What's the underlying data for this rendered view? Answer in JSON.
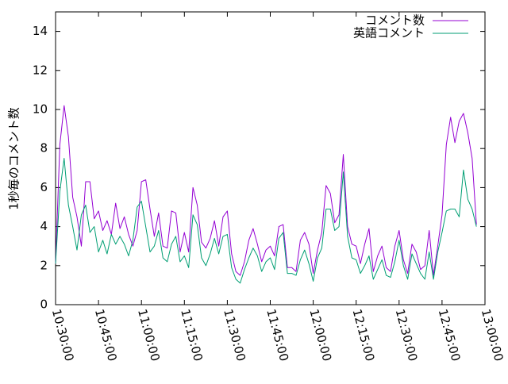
{
  "chart_data": {
    "type": "line",
    "title": "",
    "xlabel": "",
    "ylabel": "1秒毎のコメント数",
    "ylim": [
      0,
      15
    ],
    "y_ticks": [
      0,
      2,
      4,
      6,
      8,
      10,
      12,
      14
    ],
    "x_range": [
      "10:30:00",
      "13:00:00"
    ],
    "x_ticks": [
      "10:30:00",
      "10:45:00",
      "11:00:00",
      "11:15:00",
      "11:30:00",
      "11:45:00",
      "12:00:00",
      "12:15:00",
      "12:30:00",
      "12:45:00",
      "13:00:00"
    ],
    "x_tick_minutes": [
      0,
      15,
      30,
      45,
      60,
      75,
      90,
      105,
      120,
      135,
      150
    ],
    "grid": false,
    "legend_position": "top-right",
    "x": [
      "10:30:00",
      "10:31:30",
      "10:33:00",
      "10:34:30",
      "10:36:00",
      "10:37:30",
      "10:39:00",
      "10:40:30",
      "10:42:00",
      "10:43:30",
      "10:45:00",
      "10:46:30",
      "10:48:00",
      "10:49:30",
      "10:51:00",
      "10:52:30",
      "10:54:00",
      "10:55:30",
      "10:57:00",
      "10:58:30",
      "11:00:00",
      "11:01:30",
      "11:03:00",
      "11:04:30",
      "11:06:00",
      "11:07:30",
      "11:09:00",
      "11:10:30",
      "11:12:00",
      "11:13:30",
      "11:15:00",
      "11:16:30",
      "11:18:00",
      "11:19:30",
      "11:21:00",
      "11:22:30",
      "11:24:00",
      "11:25:30",
      "11:27:00",
      "11:28:30",
      "11:30:00",
      "11:31:30",
      "11:33:00",
      "11:34:30",
      "11:36:00",
      "11:37:30",
      "11:39:00",
      "11:40:30",
      "11:42:00",
      "11:43:30",
      "11:45:00",
      "11:46:30",
      "11:48:00",
      "11:49:30",
      "11:51:00",
      "11:52:30",
      "11:54:00",
      "11:55:30",
      "11:57:00",
      "11:58:30",
      "12:00:00",
      "12:01:30",
      "12:03:00",
      "12:04:30",
      "12:06:00",
      "12:07:30",
      "12:09:00",
      "12:10:30",
      "12:12:00",
      "12:13:30",
      "12:15:00",
      "12:16:30",
      "12:18:00",
      "12:19:30",
      "12:21:00",
      "12:22:30",
      "12:24:00",
      "12:25:30",
      "12:27:00",
      "12:28:30",
      "12:30:00",
      "12:31:30",
      "12:33:00",
      "12:34:30",
      "12:36:00",
      "12:37:30",
      "12:39:00",
      "12:40:30",
      "12:42:00",
      "12:43:30",
      "12:45:00",
      "12:46:30",
      "12:48:00",
      "12:49:30",
      "12:51:00",
      "12:52:30",
      "12:54:00",
      "12:55:30",
      "12:57:00"
    ],
    "series": [
      {
        "name": "コメント数",
        "color": "#9400d3",
        "values": [
          2.1,
          8.2,
          10.2,
          8.6,
          5.5,
          4.5,
          3.0,
          6.3,
          6.3,
          4.4,
          4.8,
          3.8,
          4.3,
          3.6,
          5.2,
          3.9,
          4.5,
          3.6,
          3.0,
          3.8,
          6.3,
          6.4,
          4.9,
          3.5,
          4.7,
          3.0,
          2.9,
          4.8,
          4.7,
          2.7,
          3.7,
          2.7,
          6.0,
          5.1,
          3.2,
          2.9,
          3.4,
          4.3,
          3.0,
          4.5,
          4.8,
          2.6,
          1.7,
          1.5,
          2.2,
          3.3,
          3.9,
          3.1,
          2.2,
          2.8,
          3.0,
          2.5,
          4.0,
          4.1,
          1.9,
          1.9,
          1.7,
          3.3,
          3.7,
          3.1,
          1.6,
          2.8,
          3.7,
          6.1,
          5.7,
          4.2,
          4.6,
          7.7,
          4.0,
          3.1,
          3.0,
          2.1,
          3.1,
          3.9,
          1.7,
          2.5,
          3.0,
          1.9,
          1.7,
          3.0,
          3.8,
          2.3,
          1.6,
          3.1,
          2.7,
          1.8,
          2.0,
          3.8,
          1.5,
          3.0,
          4.6,
          8.2,
          9.6,
          8.3,
          9.4,
          9.8,
          8.8,
          7.5,
          4.1
        ]
      },
      {
        "name": "英語コメント",
        "color": "#009e73",
        "values": [
          2.1,
          5.8,
          7.5,
          5.1,
          4.0,
          2.8,
          4.6,
          5.1,
          3.7,
          4.0,
          2.7,
          3.3,
          2.6,
          3.6,
          3.1,
          3.5,
          3.1,
          2.5,
          3.3,
          5.0,
          5.3,
          4.0,
          2.7,
          3.0,
          3.8,
          2.4,
          2.2,
          3.1,
          3.5,
          2.2,
          2.5,
          1.9,
          4.6,
          4.1,
          2.4,
          2.0,
          2.6,
          3.4,
          2.6,
          3.5,
          3.6,
          1.9,
          1.3,
          1.1,
          1.8,
          2.4,
          2.9,
          2.5,
          1.7,
          2.2,
          2.4,
          1.8,
          3.4,
          3.7,
          1.6,
          1.6,
          1.5,
          2.3,
          2.8,
          2.1,
          1.2,
          2.4,
          2.9,
          4.9,
          4.9,
          3.8,
          4.0,
          6.8,
          3.5,
          2.4,
          2.3,
          1.6,
          2.0,
          2.5,
          1.3,
          1.8,
          2.3,
          1.5,
          1.4,
          2.2,
          3.3,
          2.0,
          1.3,
          2.6,
          2.1,
          1.6,
          1.3,
          2.7,
          1.3,
          2.7,
          3.7,
          4.8,
          4.9,
          4.9,
          4.5,
          6.9,
          5.4,
          4.9,
          4.0
        ]
      }
    ]
  }
}
